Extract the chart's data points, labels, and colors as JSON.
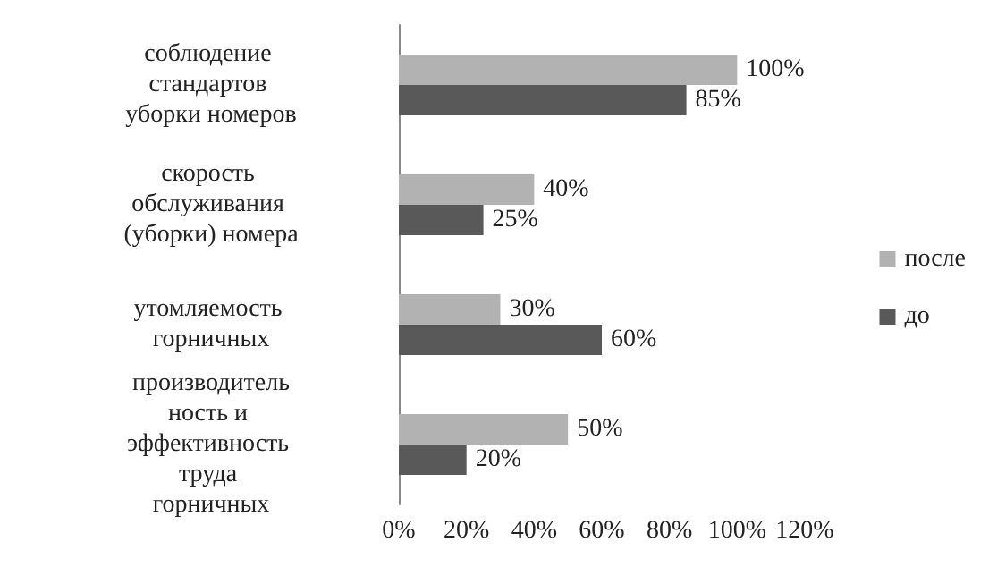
{
  "chart_data": {
    "type": "bar",
    "orientation": "horizontal",
    "categories": [
      "соблюдение стандартов уборки номеров",
      "скорость обслуживания (уборки) номера",
      "утомляемость горничных",
      "производительность и эффективность труда горничных"
    ],
    "series": [
      {
        "name": "после",
        "color": "#b2b2b2",
        "values": [
          100,
          40,
          30,
          50
        ],
        "value_labels": [
          "100%",
          "40%",
          "30%",
          "50%"
        ]
      },
      {
        "name": "до",
        "color": "#595959",
        "values": [
          85,
          25,
          60,
          20
        ],
        "value_labels": [
          "85%",
          "25%",
          "60%",
          "20%"
        ]
      }
    ],
    "xlim": [
      0,
      120
    ],
    "xticks": [
      {
        "value": 0,
        "label": "0%"
      },
      {
        "value": 20,
        "label": "20%"
      },
      {
        "value": 40,
        "label": "40%"
      },
      {
        "value": 60,
        "label": "60%"
      },
      {
        "value": 80,
        "label": "80%"
      },
      {
        "value": 100,
        "label": "100%"
      },
      {
        "value": 120,
        "label": "120%"
      }
    ],
    "grid": false,
    "legend": "right"
  }
}
